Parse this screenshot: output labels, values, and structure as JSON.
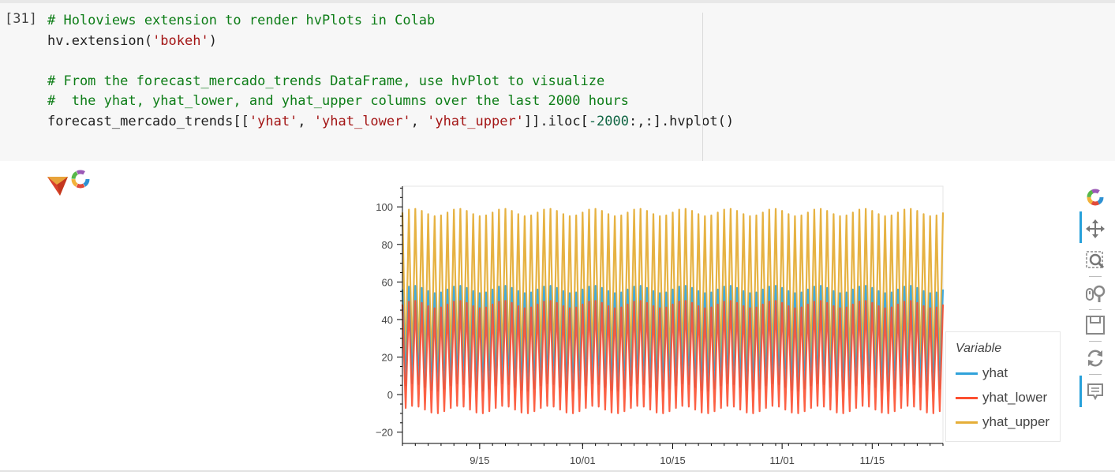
{
  "cell": {
    "execution_count": "[31]",
    "code_lines": [
      [
        {
          "t": "# Holoviews extension to render hvPlots in Colab",
          "c": "cm"
        }
      ],
      [
        {
          "t": "hv.extension(",
          "c": ""
        },
        {
          "t": "'bokeh'",
          "c": "str"
        },
        {
          "t": ")",
          "c": ""
        }
      ],
      [
        {
          "t": "",
          "c": ""
        }
      ],
      [
        {
          "t": "# From the forecast_mercado_trends DataFrame, use hvPlot to visualize",
          "c": "cm"
        }
      ],
      [
        {
          "t": "#  the yhat, yhat_lower, and yhat_upper columns over the last 2000 hours",
          "c": "cm"
        }
      ],
      [
        {
          "t": "forecast_mercado_trends[[",
          "c": ""
        },
        {
          "t": "'yhat'",
          "c": "str"
        },
        {
          "t": ", ",
          "c": ""
        },
        {
          "t": "'yhat_lower'",
          "c": "str"
        },
        {
          "t": ", ",
          "c": ""
        },
        {
          "t": "'yhat_upper'",
          "c": "str"
        },
        {
          "t": "]].iloc[",
          "c": ""
        },
        {
          "t": "-2000",
          "c": "num"
        },
        {
          "t": ":,:].hvplot()",
          "c": ""
        }
      ]
    ]
  },
  "toolbar": {
    "icons": [
      "bokeh-logo-icon",
      "pan-icon",
      "box-zoom-icon",
      "wheel-zoom-icon",
      "save-icon",
      "reset-icon",
      "hover-icon"
    ]
  },
  "chart_data": {
    "type": "line",
    "x_start": "2020-09-03",
    "x_end": "2020-11-26",
    "x_ticks": [
      "9/15",
      "10/01",
      "10/15",
      "11/01",
      "11/15"
    ],
    "x_tick_dates": [
      "2020-09-15",
      "2020-10-01",
      "2020-10-15",
      "2020-11-01",
      "2020-11-15"
    ],
    "y_ticks": [
      100,
      80,
      60,
      40,
      20,
      0,
      -20
    ],
    "y_tick_labels": [
      "100",
      "80",
      "60",
      "40",
      "20",
      "0",
      "−20"
    ],
    "ylim": [
      -26,
      111
    ],
    "legend": {
      "title": "Variable",
      "position": "right"
    },
    "grid": false,
    "cycles": 84,
    "series": [
      {
        "name": "yhat",
        "color": "#30a2da",
        "peak": 56,
        "trough": 4
      },
      {
        "name": "yhat_lower",
        "color": "#fc4f30",
        "peak": 48,
        "trough": -8
      },
      {
        "name": "yhat_upper",
        "color": "#e5ae38",
        "peak": 95,
        "trough": 14
      }
    ]
  }
}
